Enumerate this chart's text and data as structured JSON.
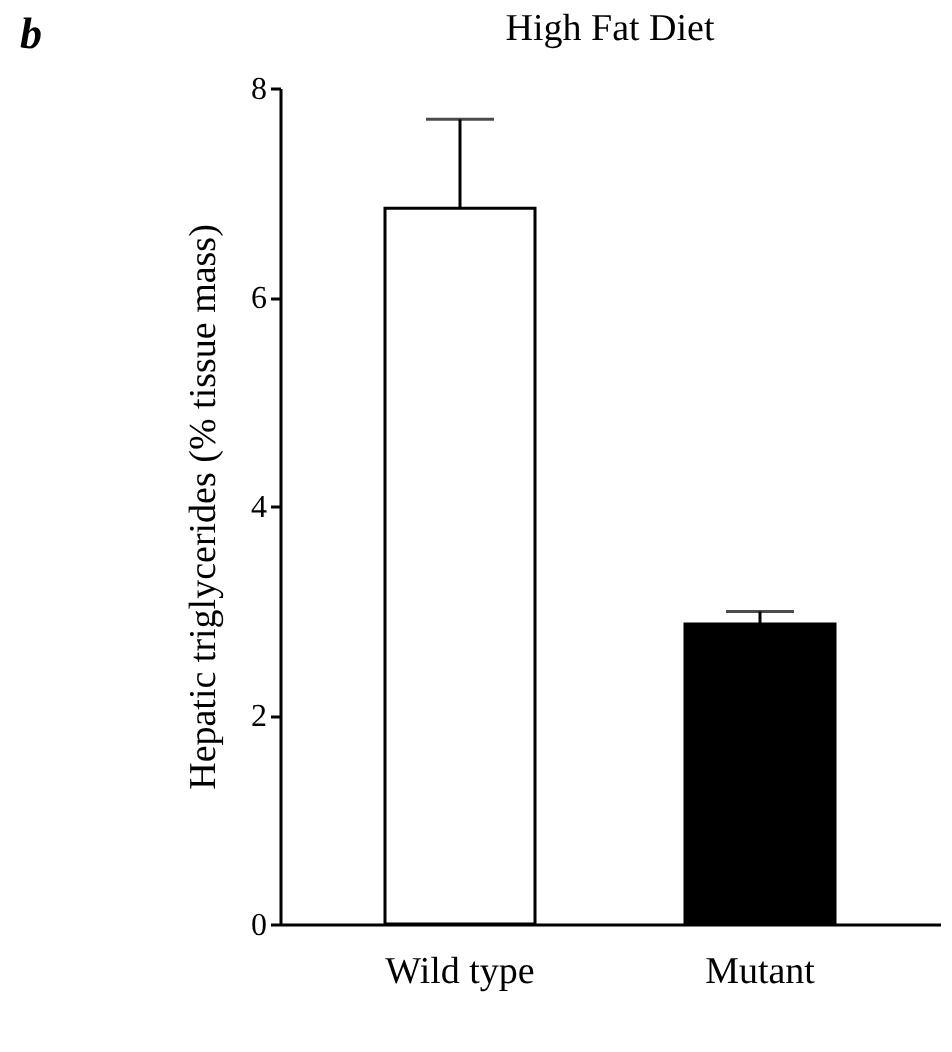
{
  "chart_data": {
    "type": "bar",
    "title": "High Fat Diet",
    "ylabel": "Hepatic triglycerides (% tissue mass)",
    "annotations": [
      "b"
    ],
    "categories": [
      "Wild type",
      "Mutant"
    ],
    "values": [
      6.85,
      2.87
    ],
    "colors": [
      "#ffffff",
      "#000000"
    ],
    "errors": [
      [
        6.85,
        7.7
      ],
      [
        2.87,
        2.99
      ]
    ],
    "ylim": [
      0,
      8
    ],
    "yticks": [
      0,
      2,
      4,
      6,
      8
    ],
    "grid": false
  }
}
